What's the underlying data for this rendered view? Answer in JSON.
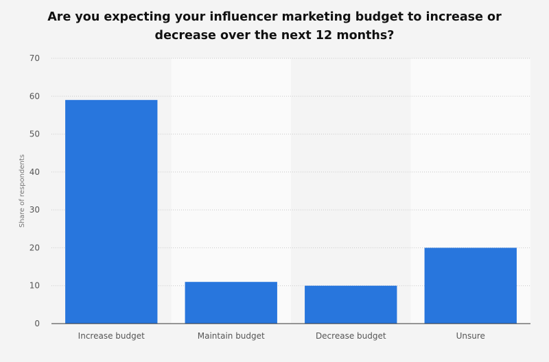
{
  "chart_data": {
    "type": "bar",
    "title": "Are you expecting your influencer marketing budget to increase or decrease over the next 12 months?",
    "xlabel": "",
    "ylabel": "Share of respondents",
    "categories": [
      "Increase budget",
      "Maintain budget",
      "Decrease budget",
      "Unsure"
    ],
    "values": [
      59,
      11,
      10,
      20
    ],
    "ylim": [
      0,
      70
    ],
    "yticks": [
      0,
      10,
      20,
      30,
      40,
      50,
      60,
      70
    ],
    "grid": true,
    "bar_color": "#2876dd"
  }
}
